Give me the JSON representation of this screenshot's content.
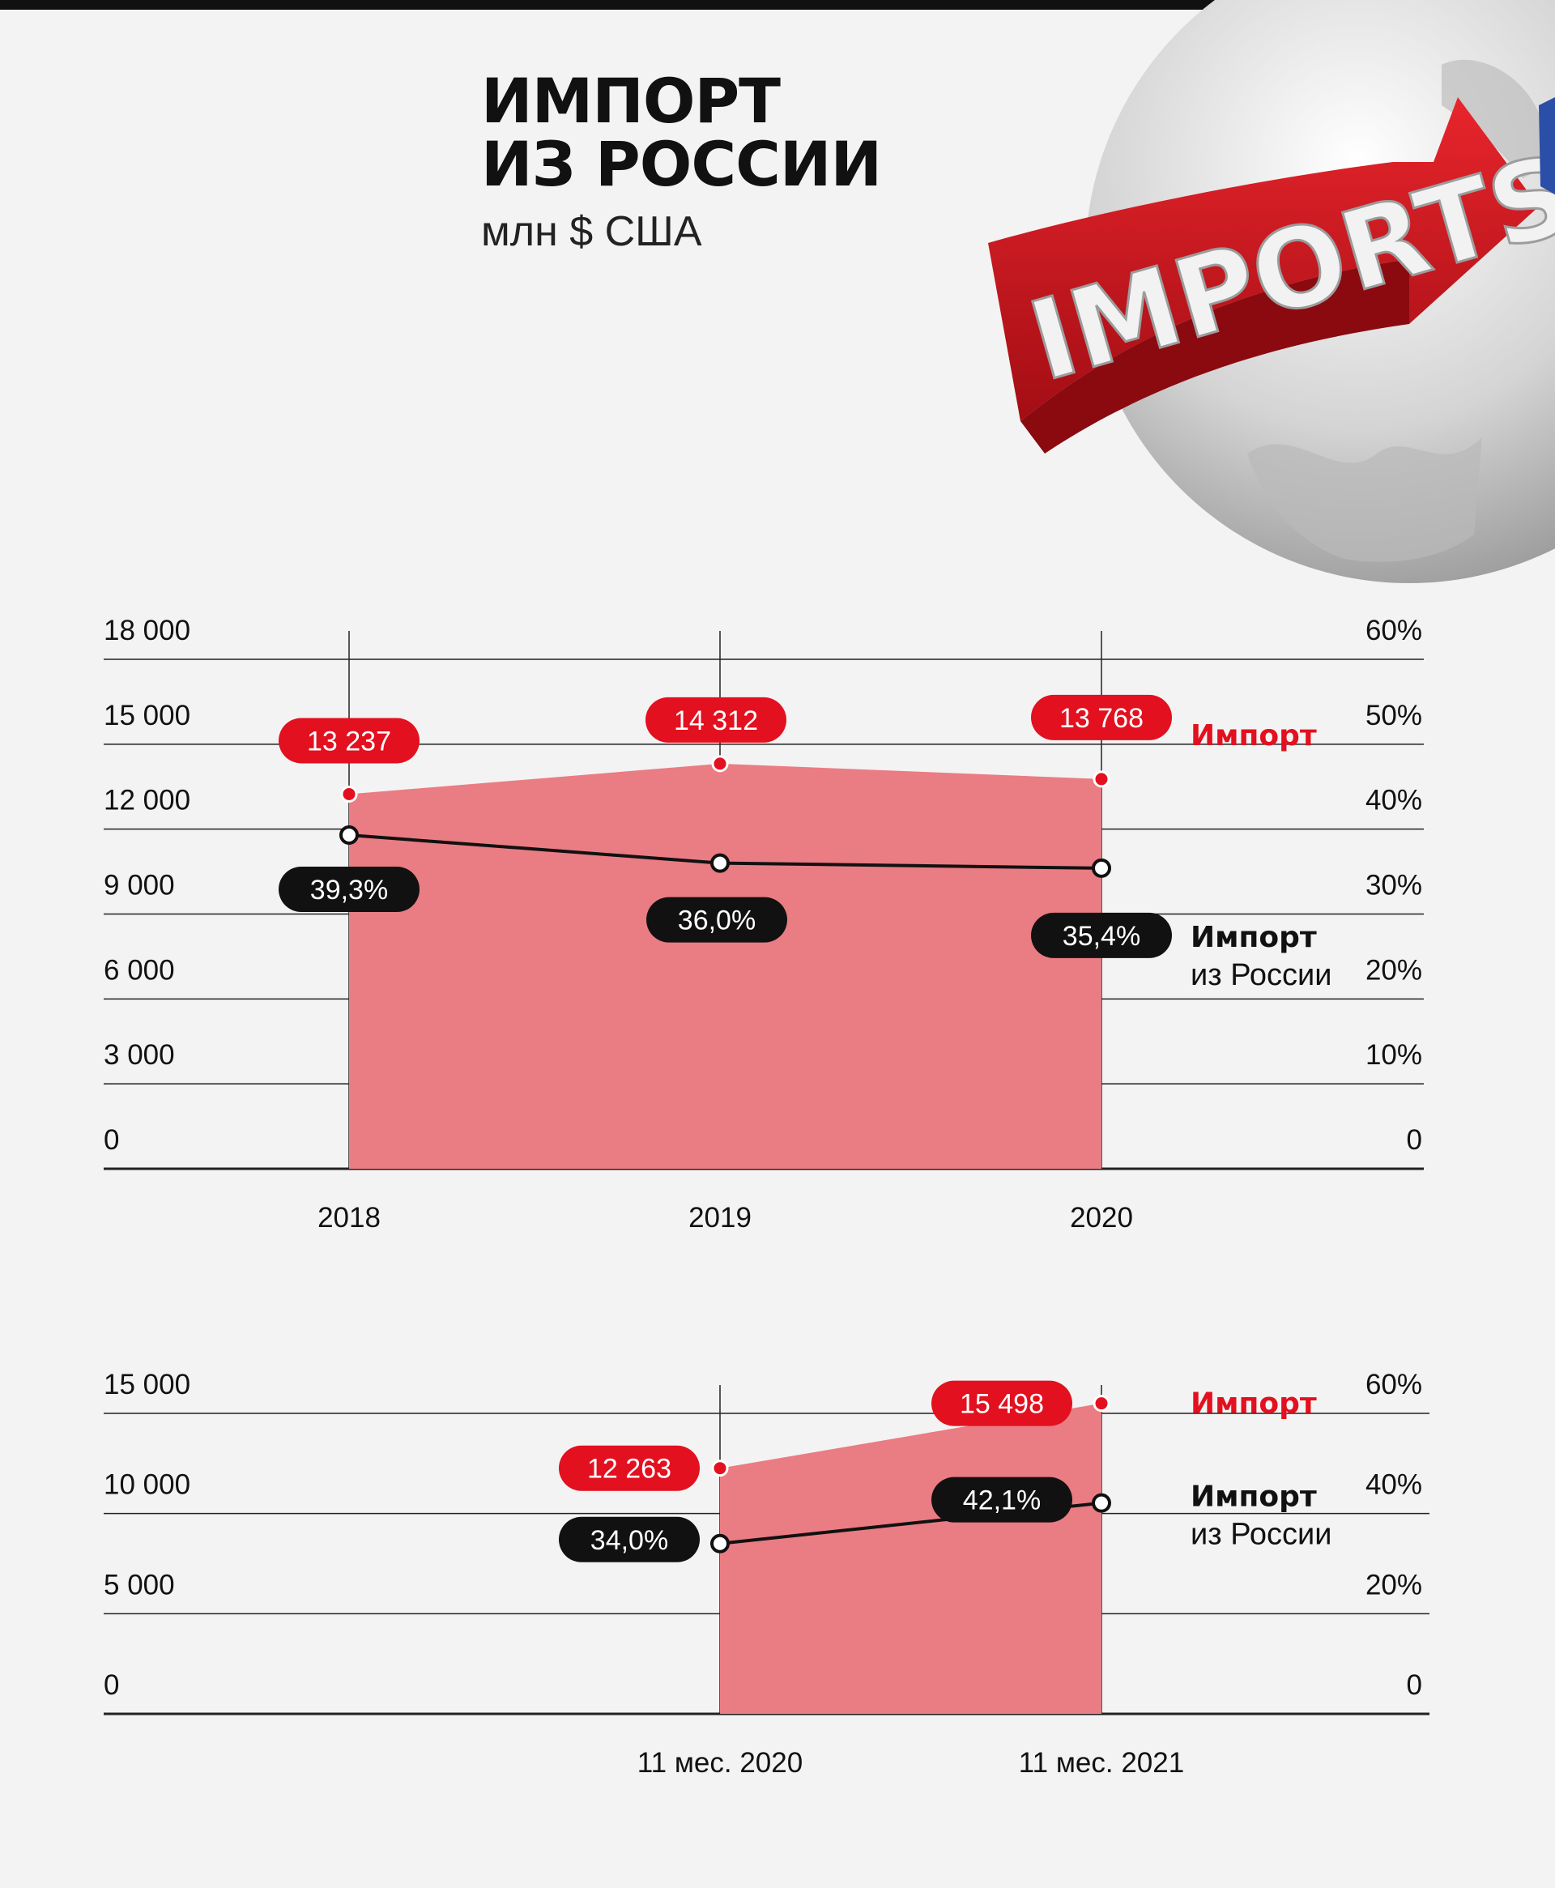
{
  "title": {
    "line1": "ИМПОРТ",
    "line2": "ИЗ РОССИИ",
    "unit": "млн $ США"
  },
  "illustration": {
    "label": "IMPORTS"
  },
  "colors": {
    "import": "#e3101f",
    "area": "#ea7c83",
    "share": "#111111",
    "grid": "#222222"
  },
  "chart_data": [
    {
      "type": "area",
      "categories": [
        "2018",
        "2019",
        "2020"
      ],
      "series": [
        {
          "name": "Импорт",
          "axis": "left",
          "values": [
            13237,
            14312,
            13768
          ],
          "labels": [
            "13 237",
            "14 312",
            "13 768"
          ]
        },
        {
          "name": "Импорт из России",
          "axis": "right",
          "type": "line",
          "values": [
            39.3,
            36.0,
            35.4
          ],
          "labels": [
            "39,3%",
            "36,0%",
            "35,4%"
          ]
        }
      ],
      "legend": [
        {
          "line1": "Импорт",
          "line2": ""
        },
        {
          "line1": "Импорт",
          "line2": "из России"
        }
      ],
      "ylim": [
        0,
        18000
      ],
      "yticks": [
        "0",
        "3 000",
        "6 000",
        "9 000",
        "12 000",
        "15 000",
        "18 000"
      ],
      "y2lim": [
        0,
        60
      ],
      "y2ticks": [
        "0",
        "10%",
        "20%",
        "30%",
        "40%",
        "50%",
        "60%"
      ]
    },
    {
      "type": "area",
      "categories": [
        "11 мес. 2020",
        "11 мес. 2021"
      ],
      "series": [
        {
          "name": "Импорт",
          "axis": "left",
          "values": [
            12263,
            15498
          ],
          "labels": [
            "12 263",
            "15 498"
          ]
        },
        {
          "name": "Импорт из России",
          "axis": "right",
          "type": "line",
          "values": [
            34.0,
            42.1
          ],
          "labels": [
            "34,0%",
            "42,1%"
          ]
        }
      ],
      "legend": [
        {
          "line1": "Импорт",
          "line2": ""
        },
        {
          "line1": "Импорт",
          "line2": "из России"
        }
      ],
      "ylim": [
        0,
        15000
      ],
      "yticks": [
        "0",
        "5 000",
        "10 000",
        "15 000"
      ],
      "y2lim": [
        0,
        60
      ],
      "y2ticks": [
        "0",
        "20%",
        "40%",
        "60%"
      ]
    }
  ]
}
